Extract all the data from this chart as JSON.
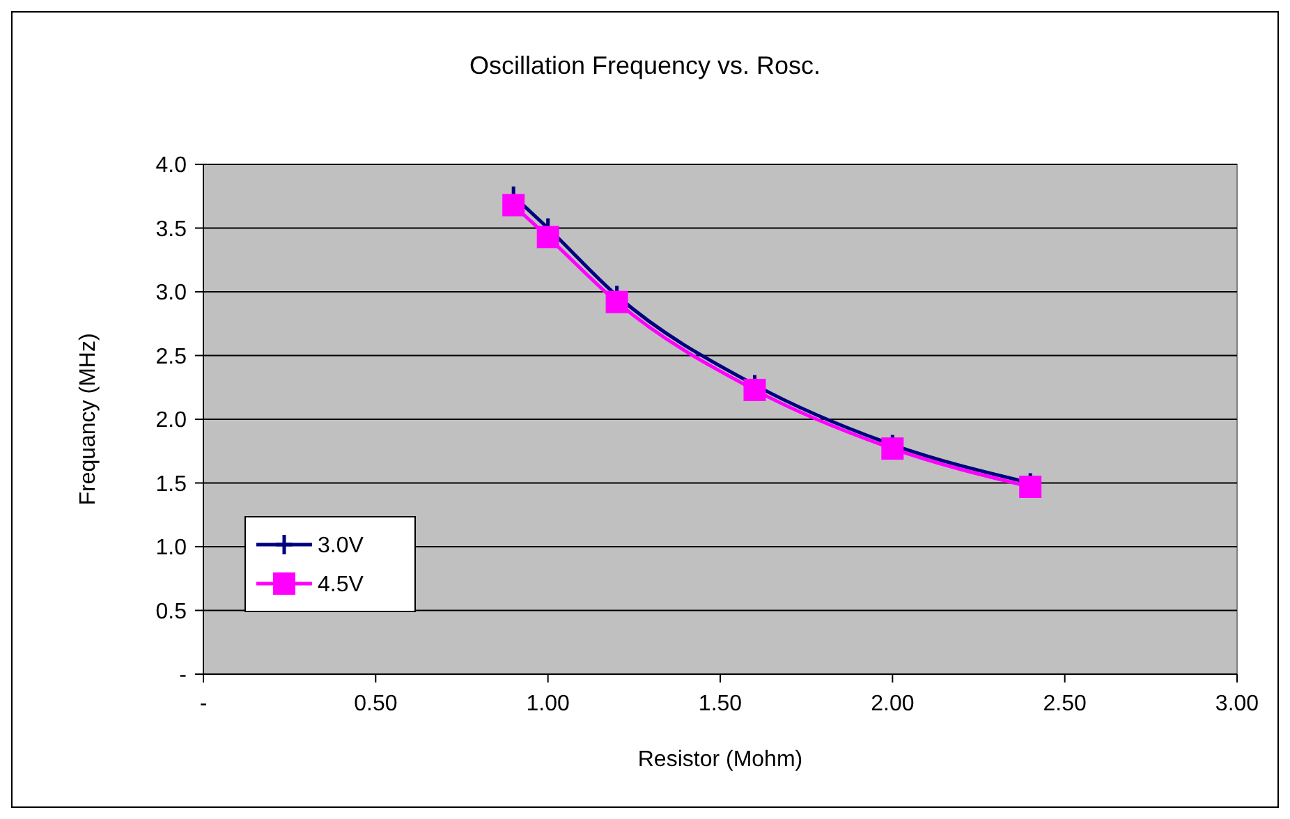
{
  "chart_data": {
    "type": "line",
    "title": "Oscillation Frequency vs. Rosc.",
    "xlabel": "Resistor (Mohm)",
    "ylabel": "Frequancy (MHz)",
    "x": [
      0.9,
      1.0,
      1.2,
      1.6,
      2.0,
      2.4
    ],
    "series": [
      {
        "name": "3.0V",
        "color": "#000080",
        "marker": "cross",
        "values": [
          3.75,
          3.5,
          2.97,
          2.27,
          1.8,
          1.5
        ]
      },
      {
        "name": "4.5V",
        "color": "#ff00ff",
        "marker": "square",
        "values": [
          3.68,
          3.43,
          2.92,
          2.23,
          1.77,
          1.47
        ]
      }
    ],
    "xlim": [
      0,
      3
    ],
    "xticks": [
      {
        "value": 0,
        "label": "-"
      },
      {
        "value": 0.5,
        "label": "0.50"
      },
      {
        "value": 1,
        "label": "1.00"
      },
      {
        "value": 1.5,
        "label": "1.50"
      },
      {
        "value": 2,
        "label": "2.00"
      },
      {
        "value": 2.5,
        "label": "2.50"
      },
      {
        "value": 3,
        "label": "3.00"
      }
    ],
    "ylim": [
      0,
      4
    ],
    "yticks": [
      {
        "value": 0,
        "label": "-"
      },
      {
        "value": 0.5,
        "label": "0.5"
      },
      {
        "value": 1,
        "label": "1.0"
      },
      {
        "value": 1.5,
        "label": "1.5"
      },
      {
        "value": 2,
        "label": "2.0"
      },
      {
        "value": 2.5,
        "label": "2.5"
      },
      {
        "value": 3,
        "label": "3.0"
      },
      {
        "value": 3.5,
        "label": "3.5"
      },
      {
        "value": 4,
        "label": "4.0"
      }
    ],
    "grid": "y",
    "legend": "bottom left",
    "line_style": "solid"
  }
}
